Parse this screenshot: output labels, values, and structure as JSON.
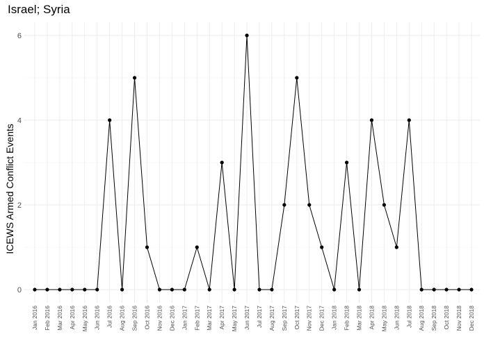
{
  "chart_data": {
    "type": "line",
    "title": "Israel; Syria",
    "xlabel": "",
    "ylabel": "ICEWS Armed Conflict Events",
    "ylim": [
      0,
      6
    ],
    "yticks": [
      0,
      2,
      4,
      6
    ],
    "grid": true,
    "legend": "none",
    "line_color": "#000000",
    "point_color": "#000000",
    "grid_color": "#ebebeb",
    "categories": [
      "Jan 2016",
      "Feb 2016",
      "Mar 2016",
      "Apr 2016",
      "May 2016",
      "Jun 2016",
      "Jul 2016",
      "Aug 2016",
      "Sep 2016",
      "Oct 2016",
      "Nov 2016",
      "Dec 2016",
      "Jan 2017",
      "Feb 2017",
      "Mar 2017",
      "Apr 2017",
      "May 2017",
      "Jun 2017",
      "Jul 2017",
      "Aug 2017",
      "Sep 2017",
      "Oct 2017",
      "Nov 2017",
      "Dec 2017",
      "Jan 2018",
      "Feb 2018",
      "Mar 2018",
      "Apr 2018",
      "May 2018",
      "Jun 2018",
      "Jul 2018",
      "Aug 2018",
      "Sep 2018",
      "Oct 2018",
      "Nov 2018",
      "Dec 2018"
    ],
    "values": [
      0,
      0,
      0,
      0,
      0,
      0,
      4,
      0,
      5,
      1,
      0,
      0,
      0,
      1,
      0,
      3,
      0,
      6,
      0,
      0,
      2,
      5,
      2,
      1,
      0,
      3,
      0,
      4,
      2,
      1,
      4,
      0,
      0,
      0,
      0,
      0
    ]
  }
}
